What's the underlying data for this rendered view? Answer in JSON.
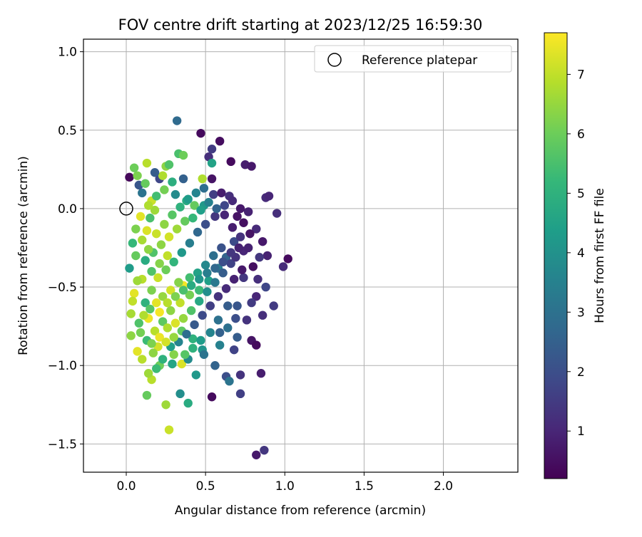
{
  "chart_data": {
    "type": "scatter",
    "title": "FOV centre drift starting at 2023/12/25 16:59:30",
    "xlabel": "Angular distance from reference (arcmin)",
    "ylabel": "Rotation from reference (arcmin)",
    "xlim": [
      -0.27,
      2.47
    ],
    "ylim": [
      -1.68,
      1.08
    ],
    "xticks": [
      0.0,
      0.5,
      1.0,
      1.5,
      2.0
    ],
    "xtick_labels": [
      "0.0",
      "0.5",
      "1.0",
      "1.5",
      "2.0"
    ],
    "yticks": [
      -1.5,
      -1.0,
      -0.5,
      0.0,
      0.5,
      1.0
    ],
    "ytick_labels": [
      "−1.5",
      "−1.0",
      "−0.5",
      "0.0",
      "0.5",
      "1.0"
    ],
    "grid": true,
    "legend": {
      "placement": "upper-right",
      "entries": [
        {
          "label": "Reference platepar",
          "marker": "open-circle"
        }
      ]
    },
    "reference_point": {
      "x": 0.0,
      "y": 0.0
    },
    "colorbar": {
      "label": "Hours from first FF file",
      "colormap": "viridis",
      "range": [
        0.2,
        7.7
      ],
      "ticks": [
        1,
        2,
        3,
        4,
        5,
        6,
        7
      ],
      "tick_labels": [
        "1",
        "2",
        "3",
        "4",
        "5",
        "6",
        "7"
      ]
    },
    "series_encoding": "each point is [x, y, hours]; colour = hours via colorbar",
    "points": [
      [
        0.02,
        0.2,
        0.35
      ],
      [
        0.47,
        0.48,
        0.4
      ],
      [
        0.59,
        0.43,
        0.45
      ],
      [
        0.66,
        0.3,
        0.4
      ],
      [
        0.75,
        0.28,
        0.8
      ],
      [
        0.79,
        0.27,
        0.7
      ],
      [
        0.52,
        0.33,
        1.2
      ],
      [
        0.54,
        0.38,
        1.5
      ],
      [
        0.32,
        0.56,
        2.8
      ],
      [
        0.33,
        0.35,
        5.5
      ],
      [
        0.36,
        0.34,
        6.0
      ],
      [
        0.13,
        0.29,
        6.9
      ],
      [
        0.25,
        0.27,
        6.4
      ],
      [
        0.27,
        0.28,
        5.6
      ],
      [
        0.07,
        0.21,
        6.2
      ],
      [
        0.21,
        0.19,
        1.8
      ],
      [
        0.36,
        0.19,
        2.5
      ],
      [
        0.48,
        0.19,
        6.8
      ],
      [
        0.54,
        0.19,
        0.6
      ],
      [
        0.54,
        0.29,
        4.5
      ],
      [
        0.88,
        0.07,
        1.1
      ],
      [
        0.9,
        0.08,
        1.0
      ],
      [
        0.95,
        -0.03,
        1.2
      ],
      [
        1.02,
        -0.32,
        0.4
      ],
      [
        0.99,
        -0.37,
        1.1
      ],
      [
        0.89,
        -0.3,
        0.9
      ],
      [
        0.93,
        -0.62,
        1.5
      ],
      [
        0.86,
        -0.68,
        1.2
      ],
      [
        0.79,
        -0.84,
        0.6
      ],
      [
        0.82,
        -0.87,
        0.4
      ],
      [
        0.85,
        -1.05,
        0.8
      ],
      [
        0.72,
        -1.06,
        1.3
      ],
      [
        0.63,
        -1.07,
        2.0
      ],
      [
        0.65,
        -1.1,
        3.1
      ],
      [
        0.72,
        -1.18,
        1.6
      ],
      [
        0.54,
        -1.2,
        0.4
      ],
      [
        0.82,
        -1.57,
        0.7
      ],
      [
        0.87,
        -1.54,
        1.4
      ],
      [
        0.34,
        -1.18,
        3.9
      ],
      [
        0.39,
        -1.24,
        4.8
      ],
      [
        0.25,
        -1.25,
        6.6
      ],
      [
        0.13,
        -1.19,
        5.9
      ],
      [
        0.27,
        -1.41,
        7.1
      ],
      [
        0.16,
        -1.09,
        6.9
      ],
      [
        0.14,
        -1.05,
        6.6
      ],
      [
        0.21,
        -1.0,
        6.0
      ],
      [
        0.35,
        -0.99,
        7.3
      ],
      [
        0.44,
        -1.06,
        4.2
      ],
      [
        0.56,
        -1.0,
        2.6
      ],
      [
        0.68,
        -0.9,
        1.7
      ],
      [
        0.7,
        -0.82,
        2.4
      ],
      [
        0.76,
        -0.71,
        1.3
      ],
      [
        0.82,
        -0.56,
        1.0
      ],
      [
        0.88,
        -0.5,
        1.8
      ],
      [
        0.74,
        -0.44,
        1.4
      ],
      [
        0.7,
        -0.62,
        2.2
      ],
      [
        0.64,
        -0.76,
        3.0
      ],
      [
        0.59,
        -0.87,
        3.5
      ],
      [
        0.48,
        -0.9,
        4.1
      ],
      [
        0.42,
        -0.83,
        5.0
      ],
      [
        0.35,
        -0.78,
        5.8
      ],
      [
        0.3,
        -0.93,
        6.3
      ],
      [
        0.2,
        -0.88,
        7.2
      ],
      [
        0.07,
        -0.91,
        7.4
      ],
      [
        0.03,
        -0.67,
        6.7
      ],
      [
        0.05,
        -0.54,
        7.4
      ],
      [
        0.1,
        -0.45,
        6.9
      ],
      [
        0.02,
        -0.38,
        4.3
      ],
      [
        0.06,
        -0.3,
        5.9
      ],
      [
        0.1,
        -0.2,
        6.7
      ],
      [
        0.13,
        -0.14,
        7.3
      ],
      [
        0.15,
        -0.06,
        5.5
      ],
      [
        0.18,
        -0.01,
        6.6
      ],
      [
        0.16,
        0.05,
        7.1
      ],
      [
        0.1,
        0.1,
        3.1
      ],
      [
        0.08,
        0.15,
        2.2
      ],
      [
        0.05,
        0.26,
        6.0
      ],
      [
        0.31,
        0.09,
        3.8
      ],
      [
        0.38,
        0.05,
        4.8
      ],
      [
        0.43,
        0.02,
        5.9
      ],
      [
        0.49,
        0.02,
        4.2
      ],
      [
        0.55,
        0.09,
        1.6
      ],
      [
        0.6,
        0.1,
        0.8
      ],
      [
        0.65,
        0.08,
        1.2
      ],
      [
        0.7,
        -0.05,
        0.6
      ],
      [
        0.77,
        -0.02,
        0.9
      ],
      [
        0.82,
        -0.13,
        1.1
      ],
      [
        0.86,
        -0.21,
        0.7
      ],
      [
        0.84,
        -0.31,
        1.4
      ],
      [
        0.8,
        -0.37,
        0.5
      ],
      [
        0.74,
        -0.27,
        1.0
      ],
      [
        0.68,
        -0.21,
        1.9
      ],
      [
        0.63,
        -0.31,
        2.6
      ],
      [
        0.58,
        -0.38,
        3.4
      ],
      [
        0.52,
        -0.46,
        4.4
      ],
      [
        0.46,
        -0.52,
        5.3
      ],
      [
        0.4,
        -0.55,
        6.1
      ],
      [
        0.36,
        -0.49,
        7.6
      ],
      [
        0.34,
        -0.6,
        7.0
      ],
      [
        0.28,
        -0.65,
        6.4
      ],
      [
        0.23,
        -0.72,
        5.8
      ],
      [
        0.18,
        -0.78,
        6.9
      ],
      [
        0.14,
        -0.7,
        7.5
      ],
      [
        0.12,
        -0.6,
        5.0
      ],
      [
        0.16,
        -0.52,
        6.2
      ],
      [
        0.2,
        -0.44,
        7.1
      ],
      [
        0.25,
        -0.39,
        6.0
      ],
      [
        0.3,
        -0.34,
        5.1
      ],
      [
        0.35,
        -0.28,
        4.2
      ],
      [
        0.4,
        -0.22,
        3.4
      ],
      [
        0.45,
        -0.15,
        2.7
      ],
      [
        0.5,
        -0.1,
        2.0
      ],
      [
        0.56,
        -0.05,
        1.4
      ],
      [
        0.62,
        -0.04,
        1.0
      ],
      [
        0.67,
        -0.12,
        0.8
      ],
      [
        0.72,
        -0.18,
        1.3
      ],
      [
        0.77,
        -0.25,
        0.9
      ],
      [
        0.6,
        -0.25,
        2.1
      ],
      [
        0.55,
        -0.3,
        2.9
      ],
      [
        0.5,
        -0.36,
        3.7
      ],
      [
        0.45,
        -0.41,
        4.5
      ],
      [
        0.4,
        -0.44,
        5.4
      ],
      [
        0.33,
        -0.47,
        6.3
      ],
      [
        0.28,
        -0.52,
        7.2
      ],
      [
        0.23,
        -0.56,
        6.5
      ],
      [
        0.19,
        -0.6,
        7.4
      ],
      [
        0.15,
        -0.64,
        5.7
      ],
      [
        0.11,
        -0.68,
        6.8
      ],
      [
        0.09,
        -0.79,
        6.1
      ],
      [
        0.13,
        -0.84,
        5.3
      ],
      [
        0.17,
        -0.92,
        6.4
      ],
      [
        0.23,
        -0.96,
        5.0
      ],
      [
        0.28,
        -0.88,
        4.4
      ],
      [
        0.33,
        -0.85,
        3.6
      ],
      [
        0.38,
        -0.8,
        2.9
      ],
      [
        0.43,
        -0.74,
        2.3
      ],
      [
        0.48,
        -0.68,
        1.9
      ],
      [
        0.53,
        -0.62,
        1.6
      ],
      [
        0.58,
        -0.56,
        1.3
      ],
      [
        0.63,
        -0.51,
        1.1
      ],
      [
        0.68,
        -0.45,
        0.9
      ],
      [
        0.73,
        -0.39,
        0.7
      ],
      [
        0.66,
        -0.35,
        1.7
      ],
      [
        0.61,
        -0.41,
        2.4
      ],
      [
        0.56,
        -0.47,
        3.2
      ],
      [
        0.51,
        -0.53,
        3.9
      ],
      [
        0.46,
        -0.59,
        4.7
      ],
      [
        0.41,
        -0.65,
        5.6
      ],
      [
        0.36,
        -0.7,
        6.5
      ],
      [
        0.31,
        -0.73,
        7.3
      ],
      [
        0.26,
        -0.76,
        6.8
      ],
      [
        0.21,
        -0.82,
        7.5
      ],
      [
        0.16,
        -0.86,
        6.2
      ],
      [
        0.12,
        -0.33,
        4.8
      ],
      [
        0.17,
        -0.28,
        5.6
      ],
      [
        0.22,
        -0.23,
        6.4
      ],
      [
        0.27,
        -0.18,
        7.2
      ],
      [
        0.32,
        -0.13,
        6.6
      ],
      [
        0.37,
        -0.08,
        5.9
      ],
      [
        0.42,
        -0.06,
        5.2
      ],
      [
        0.47,
        -0.01,
        4.4
      ],
      [
        0.52,
        0.04,
        3.5
      ],
      [
        0.57,
        0.0,
        2.6
      ],
      [
        0.62,
        0.02,
        1.8
      ],
      [
        0.67,
        0.05,
        1.1
      ],
      [
        0.72,
        0.0,
        0.7
      ],
      [
        0.24,
        0.12,
        6.1
      ],
      [
        0.19,
        0.08,
        5.4
      ],
      [
        0.14,
        0.02,
        6.8
      ],
      [
        0.09,
        -0.05,
        7.4
      ],
      [
        0.06,
        -0.13,
        6.2
      ],
      [
        0.04,
        -0.22,
        5.2
      ],
      [
        0.07,
        -0.46,
        6.6
      ],
      [
        0.04,
        -0.59,
        7.0
      ],
      [
        0.08,
        -0.73,
        5.6
      ],
      [
        0.03,
        -0.81,
        6.4
      ],
      [
        0.1,
        -0.96,
        6.9
      ],
      [
        0.19,
        -1.02,
        5.3
      ],
      [
        0.29,
        -0.99,
        4.6
      ],
      [
        0.39,
        -0.96,
        3.8
      ],
      [
        0.49,
        -0.93,
        3.1
      ],
      [
        0.59,
        -0.79,
        2.5
      ],
      [
        0.69,
        -0.7,
        2.0
      ],
      [
        0.79,
        -0.6,
        1.5
      ],
      [
        0.83,
        -0.45,
        1.2
      ],
      [
        0.78,
        -0.16,
        0.6
      ],
      [
        0.74,
        -0.09,
        0.5
      ],
      [
        0.69,
        -0.31,
        1.3
      ],
      [
        0.64,
        -0.62,
        2.4
      ],
      [
        0.58,
        -0.71,
        3.0
      ],
      [
        0.53,
        -0.79,
        3.6
      ],
      [
        0.47,
        -0.84,
        4.3
      ],
      [
        0.42,
        -0.89,
        5.0
      ],
      [
        0.37,
        -0.93,
        5.7
      ],
      [
        0.3,
        -0.82,
        6.5
      ],
      [
        0.25,
        -0.85,
        7.2
      ],
      [
        0.21,
        -0.66,
        7.6
      ],
      [
        0.26,
        -0.6,
        6.9
      ],
      [
        0.31,
        -0.56,
        6.2
      ],
      [
        0.36,
        -0.52,
        5.5
      ],
      [
        0.41,
        -0.49,
        4.8
      ],
      [
        0.46,
        -0.45,
        4.1
      ],
      [
        0.51,
        -0.41,
        3.4
      ],
      [
        0.56,
        -0.38,
        2.7
      ],
      [
        0.61,
        -0.34,
        2.0
      ],
      [
        0.66,
        -0.28,
        1.4
      ],
      [
        0.71,
        -0.25,
        0.9
      ],
      [
        0.26,
        -0.3,
        7.0
      ],
      [
        0.21,
        -0.35,
        6.3
      ],
      [
        0.16,
        -0.4,
        5.6
      ],
      [
        0.14,
        -0.26,
        6.4
      ],
      [
        0.19,
        -0.16,
        7.1
      ],
      [
        0.24,
        -0.1,
        6.4
      ],
      [
        0.29,
        -0.04,
        5.7
      ],
      [
        0.34,
        0.01,
        5.0
      ],
      [
        0.39,
        0.06,
        4.3
      ],
      [
        0.44,
        0.1,
        3.6
      ],
      [
        0.49,
        0.13,
        2.9
      ],
      [
        0.29,
        0.17,
        4.9
      ],
      [
        0.23,
        0.21,
        6.8
      ],
      [
        0.18,
        0.23,
        2.4
      ],
      [
        0.12,
        0.16,
        5.9
      ]
    ]
  }
}
